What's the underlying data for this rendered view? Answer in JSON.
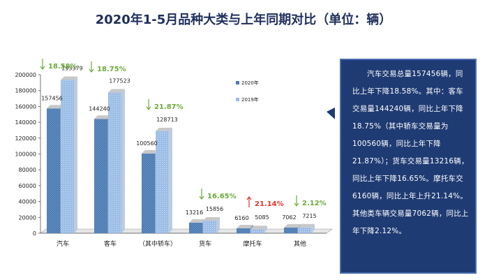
{
  "title": "2020年1-5月品种大类与上年同期对比（单位：辆）",
  "colors": {
    "series_2020": "#4a7bb4",
    "series_2019": "#9cbde6",
    "down": "#6aaa3a",
    "up": "#e0302a",
    "callout_bg": "#1f3b73"
  },
  "callout": {
    "text": "汽车交易总量157456辆，同比上年下降18.58%。其中：客车交易量144240辆，同比上年下降18.75%（其中轿车交易量为100560辆，同比上年下降21.87%）；货车交易量13216辆，同比上年下降16.65%。摩托车交6160辆，同比上年上升21.14%。其他类车辆交易量7062辆，同比上年下降2.12%。"
  },
  "chart_data": {
    "type": "bar",
    "categories": [
      "汽车",
      "客车",
      "（其中轿车）",
      "货车",
      "摩托车",
      "其他"
    ],
    "series": [
      {
        "name": "2020年",
        "values": [
          157456,
          144240,
          100560,
          13216,
          6160,
          7062
        ]
      },
      {
        "name": "2019年",
        "values": [
          193379,
          177523,
          128713,
          15856,
          5085,
          7215
        ]
      }
    ],
    "changes": [
      {
        "label": "18.58%",
        "direction": "down"
      },
      {
        "label": "18.75%",
        "direction": "down"
      },
      {
        "label": "21.87%",
        "direction": "down"
      },
      {
        "label": "16.65%",
        "direction": "down"
      },
      {
        "label": "21.14%",
        "direction": "up"
      },
      {
        "label": "2.12%",
        "direction": "down"
      }
    ],
    "yticks": [
      0,
      20000,
      40000,
      60000,
      80000,
      100000,
      120000,
      140000,
      160000,
      180000,
      200000
    ],
    "ylim": [
      0,
      200000
    ],
    "legend_position": "right"
  }
}
